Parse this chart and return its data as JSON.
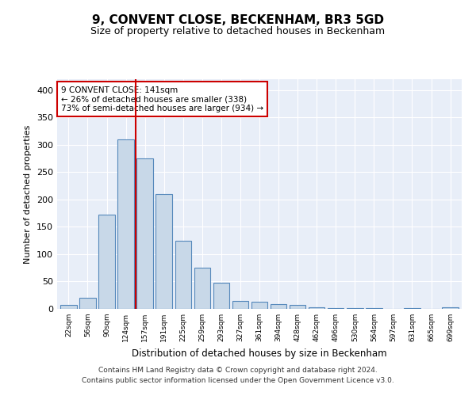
{
  "title": "9, CONVENT CLOSE, BECKENHAM, BR3 5GD",
  "subtitle": "Size of property relative to detached houses in Beckenham",
  "xlabel": "Distribution of detached houses by size in Beckenham",
  "ylabel": "Number of detached properties",
  "bar_color": "#c8d8e8",
  "bar_edge_color": "#5588bb",
  "background_color": "#e8eef8",
  "categories": [
    "22sqm",
    "56sqm",
    "90sqm",
    "124sqm",
    "157sqm",
    "191sqm",
    "225sqm",
    "259sqm",
    "293sqm",
    "327sqm",
    "361sqm",
    "394sqm",
    "428sqm",
    "462sqm",
    "496sqm",
    "530sqm",
    "564sqm",
    "597sqm",
    "631sqm",
    "665sqm",
    "699sqm"
  ],
  "values": [
    7,
    21,
    172,
    310,
    275,
    210,
    125,
    75,
    48,
    15,
    13,
    9,
    7,
    3,
    2,
    1,
    1,
    0,
    2,
    0,
    3
  ],
  "ylim": [
    0,
    420
  ],
  "yticks": [
    0,
    50,
    100,
    150,
    200,
    250,
    300,
    350,
    400
  ],
  "vline_color": "#cc0000",
  "annotation_text": "9 CONVENT CLOSE: 141sqm\n← 26% of detached houses are smaller (338)\n73% of semi-detached houses are larger (934) →",
  "annotation_box_color": "#ffffff",
  "annotation_box_edge": "#cc0000",
  "footer_line1": "Contains HM Land Registry data © Crown copyright and database right 2024.",
  "footer_line2": "Contains public sector information licensed under the Open Government Licence v3.0."
}
